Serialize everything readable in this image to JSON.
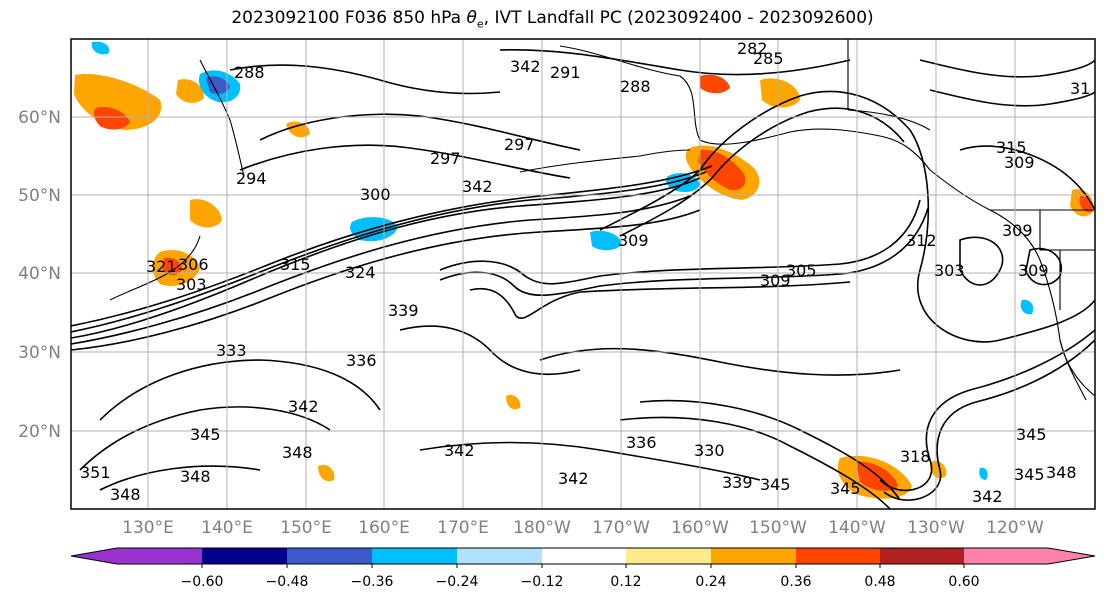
{
  "title": {
    "prefix": "2023092100 F036 850 hPa ",
    "symbol": "θ",
    "subscript": "e",
    "suffix": ", IVT Landfall PC (2023092400 - 2023092600)"
  },
  "axes": {
    "latitude_labels": [
      "60°N",
      "50°N",
      "40°N",
      "30°N",
      "20°N"
    ],
    "longitude_labels": [
      "130°E",
      "140°E",
      "150°E",
      "160°E",
      "170°E",
      "180°W",
      "170°W",
      "160°W",
      "150°W",
      "140°W",
      "130°W",
      "120°W"
    ]
  },
  "contour_labels": [
    "288",
    "291",
    "282",
    "285",
    "288",
    "297",
    "294",
    "297",
    "300",
    "309",
    "31",
    "315",
    "309",
    "303",
    "312",
    "309",
    "309",
    "305",
    "315",
    "321",
    "303",
    "306",
    "324",
    "333",
    "336",
    "339",
    "342",
    "345",
    "348",
    "351",
    "348",
    "348",
    "342",
    "342",
    "345",
    "336",
    "330",
    "339",
    "345",
    "345",
    "318",
    "342",
    "345",
    "348",
    "342",
    "342",
    "309"
  ],
  "colorbar": {
    "colors": [
      "#9932cc",
      "#00008b",
      "#3c5ac8",
      "#00bfff",
      "#b0e2ff",
      "#ffffff",
      "#ffeb8c",
      "#ffa500",
      "#ff4500",
      "#b22222",
      "#ff82ab"
    ],
    "tick_labels": [
      "−0.60",
      "−0.48",
      "−0.36",
      "−0.24",
      "−0.12",
      "0.12",
      "0.24",
      "0.36",
      "0.48",
      "0.60"
    ]
  },
  "theme": {
    "positive_fill": "#ffa500",
    "positive_strong_fill": "#ff4500",
    "negative_fill": "#00bfff",
    "negative_strong_fill": "#3c5ac8",
    "contour_color": "#000000",
    "grid_color": "#b0b0b0"
  }
}
